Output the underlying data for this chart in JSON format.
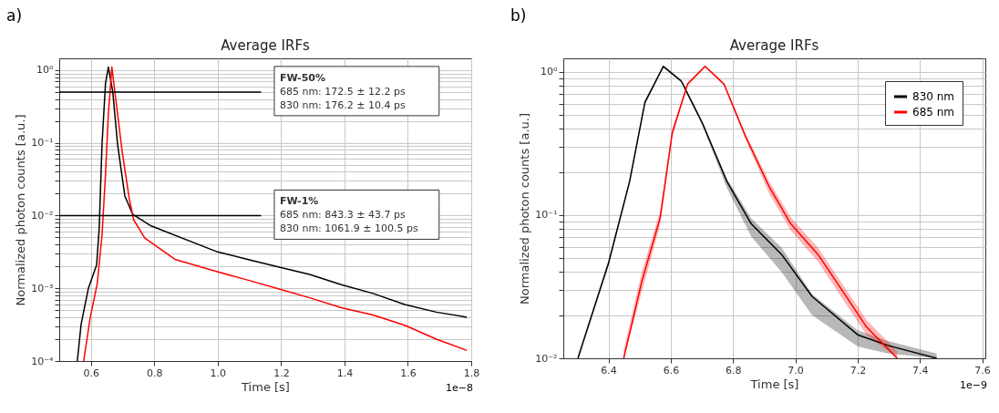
{
  "chart_data": [
    {
      "type": "line",
      "title": "Average IRFs",
      "xlabel": "Time [s]",
      "ylabel": "Normalized photon counts [a.u.]",
      "log": "y",
      "grid": true,
      "xlim": [
        0.5,
        1.8
      ],
      "xticks": [
        0.6,
        0.8,
        {
          "value": 1,
          "label": "1.0"
        },
        1.2,
        1.4,
        1.6,
        1.8
      ],
      "ylim": [
        0.0001,
        1.45
      ],
      "yticks": [
        {
          "value": 1,
          "label": "10⁰"
        },
        {
          "value": 0.1,
          "label": "10⁻¹"
        },
        {
          "value": 0.01,
          "label": "10⁻²"
        },
        {
          "value": 0.001,
          "label": "10⁻³"
        },
        {
          "value": 0.0001,
          "label": "10⁻⁴"
        },
        {
          "value": 0.0002,
          "label": null
        },
        {
          "value": 0.0003,
          "label": null
        },
        {
          "value": 0.0004,
          "label": null
        },
        {
          "value": 0.0005,
          "label": null
        },
        {
          "value": 0.0006,
          "label": null
        },
        {
          "value": 0.0007,
          "label": null
        },
        {
          "value": 0.0008,
          "label": null
        },
        {
          "value": 0.0009,
          "label": null
        },
        {
          "value": 0.002,
          "label": null
        },
        {
          "value": 0.003,
          "label": null
        },
        {
          "value": 0.004,
          "label": null
        },
        {
          "value": 0.005,
          "label": null
        },
        {
          "value": 0.006,
          "label": null
        },
        {
          "value": 0.007,
          "label": null
        },
        {
          "value": 0.008,
          "label": null
        },
        {
          "value": 0.009,
          "label": null
        },
        {
          "value": 0.02,
          "label": null
        },
        {
          "value": 0.03,
          "label": null
        },
        {
          "value": 0.04,
          "label": null
        },
        {
          "value": 0.05,
          "label": null
        },
        {
          "value": 0.06,
          "label": null
        },
        {
          "value": 0.07,
          "label": null
        },
        {
          "value": 0.08,
          "label": null
        },
        {
          "value": 0.09,
          "label": null
        },
        {
          "value": 0.2,
          "label": null
        },
        {
          "value": 0.3,
          "label": null
        },
        {
          "value": 0.4,
          "label": null
        },
        {
          "value": 0.5,
          "label": null
        },
        {
          "value": 0.6,
          "label": null
        },
        {
          "value": 0.7,
          "label": null
        },
        {
          "value": 0.8,
          "label": null
        },
        {
          "value": 0.9,
          "label": null
        }
      ],
      "series": [
        {
          "color": "#000000",
          "x": [
            0.557,
            0.569,
            0.592,
            0.618,
            0.626,
            0.635,
            0.646,
            0.655,
            0.669,
            0.684,
            0.707,
            0.732,
            0.79,
            0.996,
            1.094,
            1.194,
            1.29,
            1.39,
            1.49,
            1.59,
            1.69,
            1.786
          ],
          "values": [
            0.0001,
            0.00032,
            0.001,
            0.0021,
            0.0066,
            0.096,
            0.66,
            1.1,
            0.5,
            0.096,
            0.0186,
            0.0104,
            0.0072,
            0.0032,
            0.0025,
            0.00195,
            0.00155,
            0.00112,
            0.00085,
            0.0006,
            0.00047,
            0.0004
          ]
        },
        {
          "color": "#ff0000",
          "x": [
            0.577,
            0.598,
            0.62,
            0.635,
            0.646,
            0.655,
            0.666,
            0.678,
            0.698,
            0.721,
            0.735,
            0.77,
            0.865,
            0.996,
            1.094,
            1.194,
            1.29,
            1.39,
            1.49,
            1.59,
            1.69,
            1.786
          ],
          "values": [
            0.0001,
            0.0004,
            0.00117,
            0.0054,
            0.037,
            0.25,
            1.1,
            0.41,
            0.079,
            0.017,
            0.0087,
            0.0049,
            0.0025,
            0.0017,
            0.0013,
            0.00098,
            0.00074,
            0.00054,
            0.00043,
            0.00031,
            0.0002,
            0.00014
          ]
        }
      ],
      "ref_lines": [
        {
          "axis": "y",
          "value": 0.5,
          "color": "#000000"
        },
        {
          "axis": "y",
          "value": 0.01,
          "color": "#000000"
        }
      ],
      "annotations": [
        "a)",
        "1e−8",
        "FW-50%\n685 nm: 172.5 ± 12.2 ps\n830 nm: 176.2 ± 10.4 ps",
        "FW-1%\n685 nm: 843.3 ± 43.7 ps\n830 nm: 1061.9 ± 100.5 ps"
      ]
    },
    {
      "type": "line",
      "title": "Average IRFs",
      "xlabel": "Time [s]",
      "ylabel": "Normalized photon counts [a.u.]",
      "log": "y",
      "grid": true,
      "legend": "top right",
      "xlim": [
        6.255,
        7.61
      ],
      "xticks": [
        6.4,
        6.6,
        6.8,
        {
          "value": 7,
          "label": "7.0"
        },
        7.2,
        7.4,
        7.6
      ],
      "ylim": [
        0.01,
        1.24
      ],
      "yticks": [
        {
          "value": 1,
          "label": "10⁰"
        },
        {
          "value": 0.1,
          "label": "10⁻¹"
        },
        {
          "value": 0.01,
          "label": "10⁻²"
        },
        {
          "value": 0.02,
          "label": null
        },
        {
          "value": 0.03,
          "label": null
        },
        {
          "value": 0.04,
          "label": null
        },
        {
          "value": 0.05,
          "label": null
        },
        {
          "value": 0.06,
          "label": null
        },
        {
          "value": 0.07,
          "label": null
        },
        {
          "value": 0.08,
          "label": null
        },
        {
          "value": 0.09,
          "label": null
        },
        {
          "value": 0.2,
          "label": null
        },
        {
          "value": 0.3,
          "label": null
        },
        {
          "value": 0.4,
          "label": null
        },
        {
          "value": 0.5,
          "label": null
        },
        {
          "value": 0.6,
          "label": null
        },
        {
          "value": 0.7,
          "label": null
        },
        {
          "value": 0.8,
          "label": null
        },
        {
          "value": 0.9,
          "label": null
        }
      ],
      "series": [
        {
          "name": "830 nm",
          "color": "#000000",
          "x": [
            6.302,
            6.4,
            6.468,
            6.517,
            6.576,
            6.634,
            6.702,
            6.78,
            6.858,
            6.956,
            7.054,
            7.2,
            7.297,
            7.454
          ],
          "values": [
            0.01,
            0.046,
            0.172,
            0.61,
            1.09,
            0.86,
            0.435,
            0.172,
            0.087,
            0.053,
            0.027,
            0.0146,
            0.0123,
            0.01
          ],
          "lower": [
            0.01,
            0.044,
            0.166,
            0.59,
            1.07,
            0.84,
            0.42,
            0.155,
            0.071,
            0.04,
            0.02,
            0.0121,
            0.0108,
            0.01
          ],
          "upper": [
            0.0105,
            0.048,
            0.178,
            0.63,
            1.11,
            0.88,
            0.45,
            0.18,
            0.095,
            0.059,
            0.028,
            0.0157,
            0.0132,
            0.0108
          ]
        },
        {
          "name": "685 nm",
          "color": "#ff0000",
          "x": [
            6.449,
            6.507,
            6.566,
            6.605,
            6.654,
            6.71,
            6.771,
            6.839,
            6.917,
            6.985,
            7.073,
            7.151,
            7.229,
            7.327
          ],
          "values": [
            0.01,
            0.0343,
            0.0957,
            0.376,
            0.82,
            1.09,
            0.82,
            0.358,
            0.156,
            0.087,
            0.053,
            0.0296,
            0.0165,
            0.01
          ],
          "lower": [
            0.01,
            0.029,
            0.085,
            0.35,
            0.8,
            1.07,
            0.8,
            0.34,
            0.14,
            0.078,
            0.047,
            0.026,
            0.0145,
            0.01
          ],
          "upper": [
            0.0115,
            0.04,
            0.107,
            0.4,
            0.84,
            1.11,
            0.84,
            0.375,
            0.17,
            0.097,
            0.059,
            0.033,
            0.0185,
            0.0112
          ]
        }
      ],
      "annotations": [
        "b)",
        "1e−9"
      ]
    }
  ]
}
